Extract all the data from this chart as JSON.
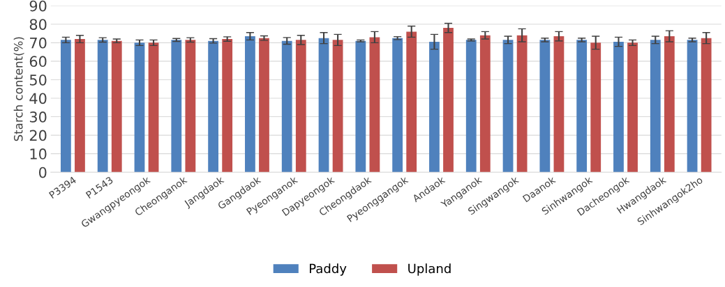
{
  "chart_data": {
    "type": "bar",
    "ylabel": "Starch content(%)",
    "categories": [
      "P3394",
      "P1543",
      "Gwangpyeongok",
      "Cheonganok",
      "Jangdaok",
      "Gangdaok",
      "Pyeonganok",
      "Dapyeongok",
      "Cheongdaok",
      "Pyeonggangok",
      "Andaok",
      "Yanganok",
      "Singwangok",
      "Daanok",
      "Sinhwangok",
      "Dacheongok",
      "Hwangdaok",
      "Sinhwangok2ho"
    ],
    "series": [
      {
        "name": "Paddy",
        "color": "#4f81bd",
        "values": [
          71.5,
          71.5,
          70,
          71.5,
          71,
          73.5,
          71,
          72.5,
          71,
          72.5,
          70.5,
          71.5,
          71.5,
          71.5,
          71.5,
          70.5,
          71.5,
          71.5
        ],
        "errors": [
          1.5,
          1.2,
          1.5,
          0.8,
          1.2,
          2,
          1.8,
          3,
          0.5,
          0.8,
          4,
          0.5,
          2,
          1,
          1,
          2.5,
          2,
          1
        ]
      },
      {
        "name": "Upland",
        "color": "#c0504d",
        "values": [
          72,
          71,
          70,
          71.5,
          72,
          72.5,
          71.5,
          71.5,
          73,
          76,
          78,
          74,
          74,
          73.5,
          70,
          70,
          73.5,
          72.5
        ],
        "errors": [
          2,
          1,
          1.5,
          1.2,
          1.2,
          1.2,
          2.5,
          3,
          3,
          3,
          2.5,
          2,
          3.5,
          2.5,
          3.5,
          1.5,
          3,
          3
        ]
      }
    ],
    "ylim": [
      0,
      90
    ],
    "yticks": [
      0,
      10,
      20,
      30,
      40,
      50,
      60,
      70,
      80,
      90
    ],
    "grid": "y",
    "legend": "bottom"
  }
}
